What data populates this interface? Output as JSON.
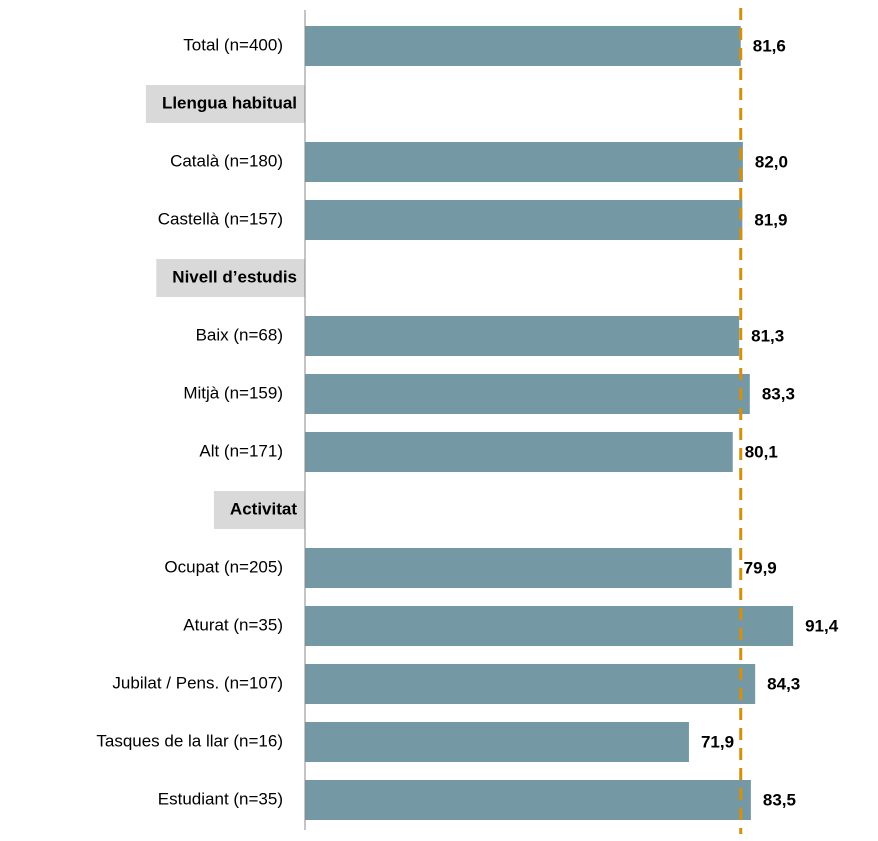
{
  "chart_data": {
    "type": "barh",
    "categories": [
      "Total (n=400)",
      "Llengua habitual",
      "Català (n=180)",
      "Castellà (n=157)",
      "Nivell d’estudis",
      "Baix (n=68)",
      "Mitjà (n=159)",
      "Alt (n=171)",
      "Activitat",
      "Ocupat (n=205)",
      "Aturat (n=35)",
      "Jubilat / Pens. (n=107)",
      "Tasques de la llar (n=16)",
      "Estudiant (n=35)"
    ],
    "values": [
      81.6,
      null,
      82.0,
      81.9,
      null,
      81.3,
      83.3,
      80.1,
      null,
      79.9,
      91.4,
      84.3,
      71.9,
      83.5
    ],
    "value_labels": [
      "81,6",
      null,
      "82,0",
      "81,9",
      null,
      "81,3",
      "83,3",
      "80,1",
      null,
      "79,9",
      "91,4",
      "84,3",
      "71,9",
      "83,5"
    ],
    "color": "#7599a4",
    "xlim": [
      0,
      100
    ],
    "reference_line": {
      "value": 81.6,
      "color": "#d4900a"
    }
  }
}
